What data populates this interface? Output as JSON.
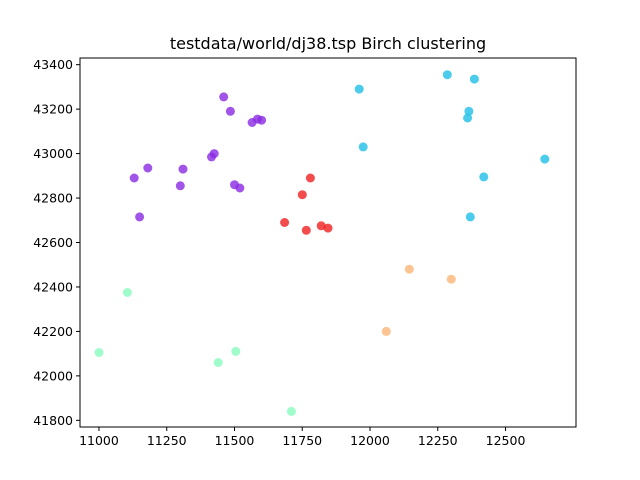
{
  "chart_data": {
    "type": "scatter",
    "title": "testdata/world/dj38.tsp Birch clustering",
    "xlabel": "",
    "ylabel": "",
    "xlim": [
      10930,
      12760
    ],
    "ylim": [
      41770,
      43430
    ],
    "xticks": [
      11000,
      11250,
      11500,
      11750,
      12000,
      12250,
      12500
    ],
    "yticks": [
      41800,
      42000,
      42200,
      42400,
      42600,
      42800,
      43000,
      43200,
      43400
    ],
    "grid": false,
    "legend": "none",
    "series": [
      {
        "color": "#8a2be2",
        "points": [
          [
            11460,
            43255
          ],
          [
            11485,
            43190
          ],
          [
            11565,
            43140
          ],
          [
            11585,
            43155
          ],
          [
            11600,
            43150
          ],
          [
            11415,
            42985
          ],
          [
            11425,
            43000
          ],
          [
            11180,
            42935
          ],
          [
            11310,
            42930
          ],
          [
            11130,
            42890
          ],
          [
            11300,
            42855
          ],
          [
            11500,
            42860
          ],
          [
            11520,
            42845
          ],
          [
            11150,
            42715
          ]
        ]
      },
      {
        "color": "#1fbfe8",
        "points": [
          [
            12285,
            43355
          ],
          [
            12385,
            43335
          ],
          [
            11960,
            43290
          ],
          [
            12365,
            43190
          ],
          [
            12360,
            43160
          ],
          [
            11975,
            43030
          ],
          [
            12645,
            42975
          ],
          [
            12420,
            42895
          ],
          [
            12370,
            42715
          ]
        ]
      },
      {
        "color": "#f01f1f",
        "points": [
          [
            11780,
            42890
          ],
          [
            11750,
            42815
          ],
          [
            11685,
            42690
          ],
          [
            11820,
            42675
          ],
          [
            11845,
            42665
          ],
          [
            11765,
            42655
          ]
        ]
      },
      {
        "color": "#fbb575",
        "points": [
          [
            12145,
            42480
          ],
          [
            12300,
            42435
          ],
          [
            12060,
            42200
          ]
        ]
      },
      {
        "color": "#87fdbe",
        "points": [
          [
            11105,
            42375
          ],
          [
            11000,
            42105
          ],
          [
            11505,
            42110
          ],
          [
            11440,
            42060
          ],
          [
            11710,
            41840
          ]
        ]
      }
    ]
  }
}
